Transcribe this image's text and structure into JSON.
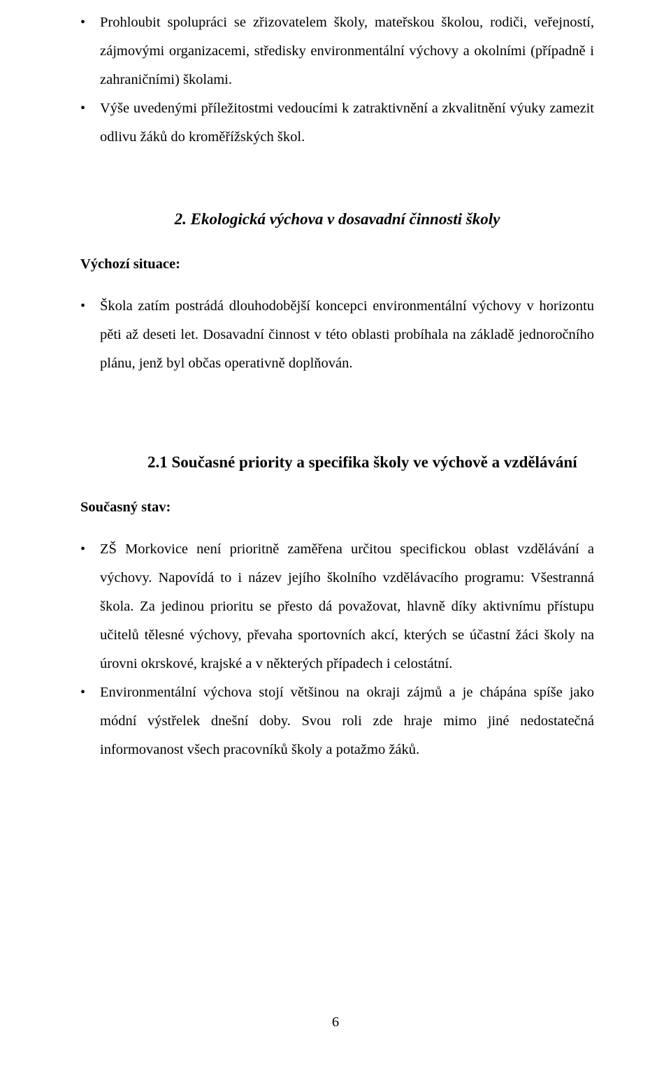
{
  "pageNumber": "6",
  "block1": {
    "items": [
      "Prohloubit spolupráci se zřizovatelem školy, mateřskou školou, rodiči, veřejností, zájmovými organizacemi, středisky environmentální výchovy a okolními (případně i zahraničními) školami.",
      "Výše uvedenými příležitostmi vedoucími k zatraktivnění a zkvalitnění výuky zamezit odlivu žáků do kroměřížských škol."
    ]
  },
  "heading2": "2. Ekologická výchova v dosavadní činnosti školy",
  "label1": "Výchozí situace:",
  "block2": {
    "items": [
      "Škola zatím postrádá dlouhodobější koncepci environmentální výchovy v horizontu pěti až deseti let. Dosavadní činnost v této oblasti probíhala na základě jednoročního plánu, jenž byl občas operativně doplňován."
    ]
  },
  "heading3": "2.1 Současné priority  a specifika školy ve výchově a vzdělávání",
  "label2": "Současný stav:",
  "block3": {
    "items": [
      "ZŠ Morkovice není prioritně zaměřena  určitou specifickou oblast vzdělávání a výchovy. Napovídá to i název jejího školního vzdělávacího programu: Všestranná škola. Za jedinou prioritu se přesto dá považovat, hlavně díky aktivnímu přístupu učitelů tělesné výchovy, převaha sportovních akcí, kterých se účastní žáci školy na úrovni okrskové, krajské a v některých případech i celostátní.",
      "Environmentální výchova stojí většinou na okraji zájmů a je chápána spíše jako módní výstřelek dnešní doby. Svou roli zde hraje mimo jiné nedostatečná informovanost všech pracovníků školy a potažmo žáků."
    ]
  }
}
